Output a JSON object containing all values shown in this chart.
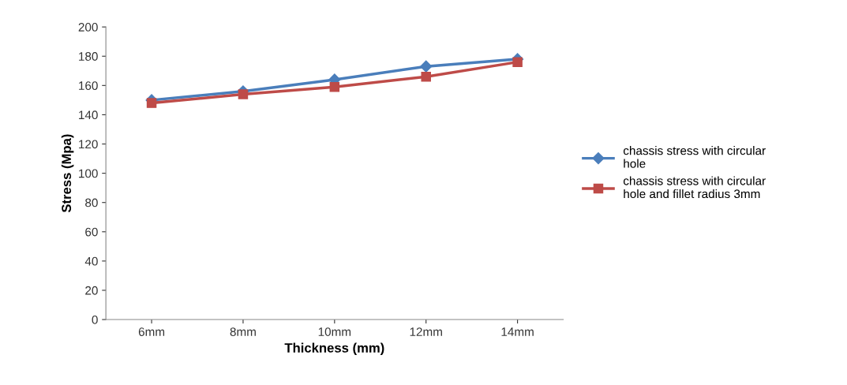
{
  "chart_data": {
    "type": "line",
    "xlabel": "Thickness (mm)",
    "ylabel": "Stress (Mpa)",
    "categories": [
      "6mm",
      "8mm",
      "10mm",
      "12mm",
      "14mm"
    ],
    "series": [
      {
        "name": "chassis stress with circular hole",
        "color": "#4a7ebb",
        "marker": "diamond",
        "values": [
          150,
          156,
          164,
          173,
          178
        ]
      },
      {
        "name": "chassis stress with circular hole and fillet radius 3mm",
        "color": "#be4b48",
        "marker": "square",
        "values": [
          148,
          154,
          159,
          166,
          176
        ]
      }
    ],
    "ylim": [
      0,
      200
    ],
    "yticks": [
      0,
      20,
      40,
      60,
      80,
      100,
      120,
      140,
      160,
      180,
      200
    ],
    "grid": false,
    "legend": "right",
    "line_style": "solid"
  }
}
